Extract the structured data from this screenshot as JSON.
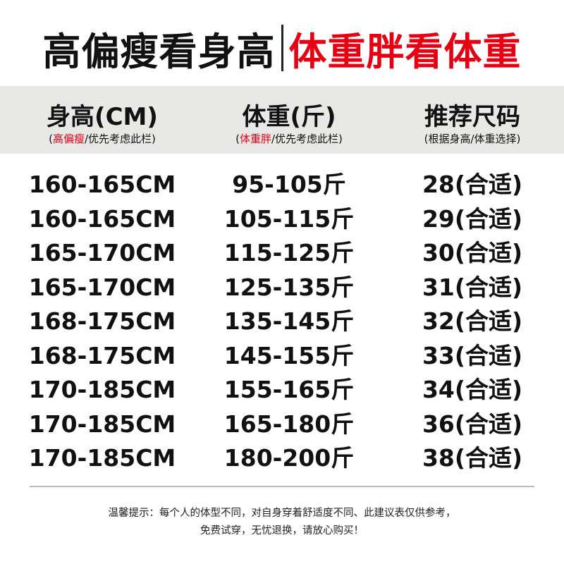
{
  "title": {
    "left": "高偏瘦看身高",
    "right": "体重胖看体重"
  },
  "colors": {
    "accent_red": "#e60012",
    "header_bg": "#e8e8e6"
  },
  "columns": [
    {
      "label": "身高(CM)",
      "sub_open": "(",
      "sub_highlight": "高偏瘦",
      "sub_rest": "/优先考虑此栏)"
    },
    {
      "label": "体重(斤)",
      "sub_open": "(",
      "sub_highlight": "体重胖",
      "sub_rest": "/优先考虑此栏)"
    },
    {
      "label": "推荐尺码",
      "sub_open": "",
      "sub_highlight": "",
      "sub_rest": "(根据身高/体重选择)"
    }
  ],
  "rows": [
    [
      "160-165CM",
      "95-105斤",
      "28(合适)"
    ],
    [
      "160-165CM",
      "105-115斤",
      "29(合适)"
    ],
    [
      "165-170CM",
      "115-125斤",
      "30(合适)"
    ],
    [
      "165-170CM",
      "125-135斤",
      "31(合适)"
    ],
    [
      "168-175CM",
      "135-145斤",
      "32(合适)"
    ],
    [
      "168-175CM",
      "145-155斤",
      "33(合适)"
    ],
    [
      "170-185CM",
      "155-165斤",
      "34(合适)"
    ],
    [
      "170-185CM",
      "165-180斤",
      "36(合适)"
    ],
    [
      "170-185CM",
      "180-200斤",
      "38(合适)"
    ]
  ],
  "note": {
    "line1": "温馨提示：每个人的体型不同，对自身穿着舒适度不同、此建议表仅供参考，",
    "line2": "免费试穿，无忧退换，请放心购买！"
  }
}
